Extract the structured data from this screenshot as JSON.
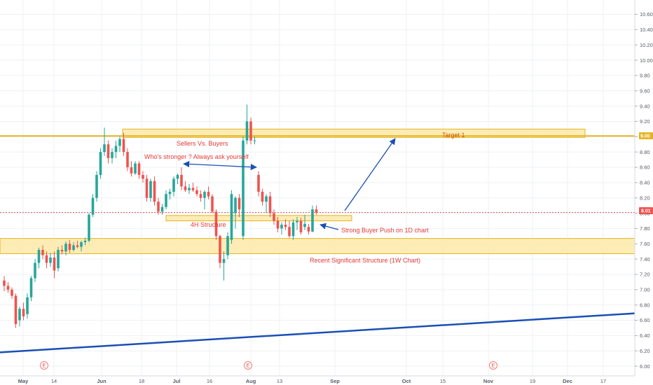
{
  "chart_data": {
    "type": "candlestick",
    "y_axis": {
      "ticks": [
        "10.60",
        "10.40",
        "10.20",
        "10.00",
        "9.80",
        "9.60",
        "9.40",
        "9.20",
        "9.00",
        "8.80",
        "8.60",
        "8.40",
        "8.20",
        "8.00",
        "7.80",
        "7.60",
        "7.40",
        "7.20",
        "7.00",
        "6.80",
        "6.60",
        "6.40",
        "6.20",
        "6.00"
      ],
      "ylim": [
        5.9,
        10.72
      ],
      "position": "right"
    },
    "x_axis": {
      "ticks": [
        "May",
        "14",
        "Jun",
        "18",
        "Jul",
        "16",
        "Aug",
        "13",
        "Sep",
        "Oct",
        "15",
        "Nov",
        "19",
        "Dec",
        "17"
      ],
      "month_ticks": [
        "May",
        "Jun",
        "Jul",
        "Aug",
        "Sep",
        "Oct",
        "Nov",
        "Dec"
      ]
    },
    "price_badges": {
      "resistance_price": "9.00",
      "last_price": "8.01"
    },
    "last_price_line": 8.01,
    "resistance_line": 9.01,
    "colors": {
      "up": "#26a69a",
      "down": "#ef5350",
      "zone_fill": "#fde9a8",
      "zone_stroke": "#e6b422",
      "trend": "#1a4fb4",
      "arrow": "#1a4fb4",
      "resistance": "#e6b422",
      "last_price": "#ef5350"
    },
    "events": [
      "E",
      "E",
      "E"
    ],
    "zones": [
      {
        "label": "Target 1",
        "low": 8.99,
        "high": 9.1
      },
      {
        "label": "4H Structure",
        "low": 7.9,
        "high": 7.97
      },
      {
        "label": "Recent Significant Structure (1W Chart)",
        "low": 7.47,
        "high": 7.67
      }
    ],
    "annotations": {
      "sellers_buyers": "Sellers Vs. Buyers",
      "who_stronger": "Who's stronger ? Always ask yourself",
      "target": "Target 1",
      "structure_4h": "4H Structure",
      "buyer_push": "Strong Buyer Push on 1D chart",
      "weekly_structure": "Recent Significant Structure (1W Chart)"
    },
    "trendline": {
      "from": 6.18,
      "to": 6.69
    },
    "candles": [
      [
        7.12,
        7.18,
        6.98,
        7.05
      ],
      [
        7.05,
        7.1,
        6.96,
        7.0
      ],
      [
        7.0,
        7.03,
        6.88,
        6.92
      ],
      [
        6.92,
        6.95,
        6.5,
        6.55
      ],
      [
        6.6,
        6.78,
        6.52,
        6.75
      ],
      [
        6.75,
        6.83,
        6.6,
        6.65
      ],
      [
        6.68,
        6.95,
        6.62,
        6.9
      ],
      [
        6.9,
        7.18,
        6.85,
        7.15
      ],
      [
        7.15,
        7.4,
        7.1,
        7.35
      ],
      [
        7.35,
        7.55,
        7.28,
        7.52
      ],
      [
        7.52,
        7.58,
        7.4,
        7.45
      ],
      [
        7.45,
        7.5,
        7.28,
        7.35
      ],
      [
        7.35,
        7.48,
        7.3,
        7.42
      ],
      [
        7.42,
        7.5,
        7.15,
        7.25
      ],
      [
        7.28,
        7.56,
        7.24,
        7.52
      ],
      [
        7.52,
        7.58,
        7.46,
        7.5
      ],
      [
        7.5,
        7.63,
        7.45,
        7.6
      ],
      [
        7.6,
        7.65,
        7.48,
        7.52
      ],
      [
        7.52,
        7.62,
        7.5,
        7.58
      ],
      [
        7.58,
        7.64,
        7.54,
        7.56
      ],
      [
        7.56,
        7.64,
        7.5,
        7.62
      ],
      [
        7.62,
        7.68,
        7.58,
        7.64
      ],
      [
        7.64,
        8.0,
        7.62,
        7.98
      ],
      [
        7.98,
        8.25,
        7.95,
        8.2
      ],
      [
        8.2,
        8.55,
        8.15,
        8.5
      ],
      [
        8.5,
        8.85,
        8.45,
        8.8
      ],
      [
        8.8,
        9.12,
        8.75,
        8.9
      ],
      [
        8.9,
        8.95,
        8.65,
        8.72
      ],
      [
        8.72,
        8.85,
        8.65,
        8.8
      ],
      [
        8.8,
        8.95,
        8.72,
        8.88
      ],
      [
        8.88,
        9.0,
        8.8,
        8.97
      ],
      [
        8.97,
        9.05,
        8.75,
        8.8
      ],
      [
        8.8,
        8.85,
        8.55,
        8.6
      ],
      [
        8.6,
        8.68,
        8.48,
        8.52
      ],
      [
        8.52,
        8.68,
        8.5,
        8.65
      ],
      [
        8.65,
        8.68,
        8.45,
        8.5
      ],
      [
        8.5,
        8.55,
        8.4,
        8.45
      ],
      [
        8.45,
        8.5,
        8.15,
        8.2
      ],
      [
        8.2,
        8.45,
        8.15,
        8.42
      ],
      [
        8.42,
        8.48,
        8.1,
        8.15
      ],
      [
        8.15,
        8.2,
        7.98,
        8.02
      ],
      [
        8.02,
        8.12,
        7.98,
        8.08
      ],
      [
        8.08,
        8.3,
        8.05,
        8.25
      ],
      [
        8.25,
        8.32,
        8.18,
        8.28
      ],
      [
        8.28,
        8.48,
        8.22,
        8.45
      ],
      [
        8.45,
        8.52,
        8.38,
        8.5
      ],
      [
        8.5,
        8.6,
        8.3,
        8.35
      ],
      [
        8.35,
        8.42,
        8.28,
        8.3
      ],
      [
        8.3,
        8.38,
        8.25,
        8.33
      ],
      [
        8.33,
        8.4,
        8.28,
        8.3
      ],
      [
        8.3,
        8.35,
        8.22,
        8.25
      ],
      [
        8.25,
        8.3,
        8.15,
        8.2
      ],
      [
        8.2,
        8.3,
        8.05,
        8.28
      ],
      [
        8.28,
        8.35,
        8.18,
        8.22
      ],
      [
        8.22,
        8.25,
        8.0,
        8.02
      ],
      [
        8.02,
        8.05,
        7.65,
        7.7
      ],
      [
        7.7,
        7.72,
        7.28,
        7.35
      ],
      [
        7.35,
        7.5,
        7.12,
        7.4
      ],
      [
        7.45,
        7.75,
        7.4,
        7.7
      ],
      [
        7.65,
        8.3,
        7.6,
        8.25
      ],
      [
        8.0,
        8.22,
        7.8,
        8.2
      ],
      [
        8.2,
        8.25,
        7.95,
        8.05
      ],
      [
        7.7,
        9.0,
        7.65,
        8.95
      ],
      [
        8.95,
        9.42,
        8.9,
        9.2
      ],
      [
        9.2,
        9.25,
        8.9,
        8.95
      ],
      [
        8.95,
        9.0,
        8.9,
        8.95
      ],
      [
        8.5,
        8.55,
        8.22,
        8.28
      ],
      [
        8.28,
        8.32,
        8.1,
        8.15
      ],
      [
        8.15,
        8.25,
        8.0,
        8.22
      ],
      [
        8.22,
        8.28,
        7.95,
        8.0
      ],
      [
        8.0,
        8.05,
        7.85,
        7.9
      ],
      [
        7.9,
        7.95,
        7.75,
        7.8
      ],
      [
        7.8,
        7.88,
        7.72,
        7.85
      ],
      [
        7.85,
        7.92,
        7.78,
        7.82
      ],
      [
        7.82,
        7.9,
        7.68,
        7.7
      ],
      [
        7.7,
        7.92,
        7.65,
        7.88
      ],
      [
        7.88,
        7.95,
        7.78,
        7.9
      ],
      [
        7.9,
        7.94,
        7.72,
        7.75
      ],
      [
        7.82,
        7.98,
        7.78,
        7.86
      ],
      [
        7.82,
        7.86,
        7.72,
        7.76
      ],
      [
        7.76,
        8.1,
        7.75,
        8.05
      ],
      [
        8.05,
        8.1,
        7.98,
        8.01
      ]
    ]
  }
}
